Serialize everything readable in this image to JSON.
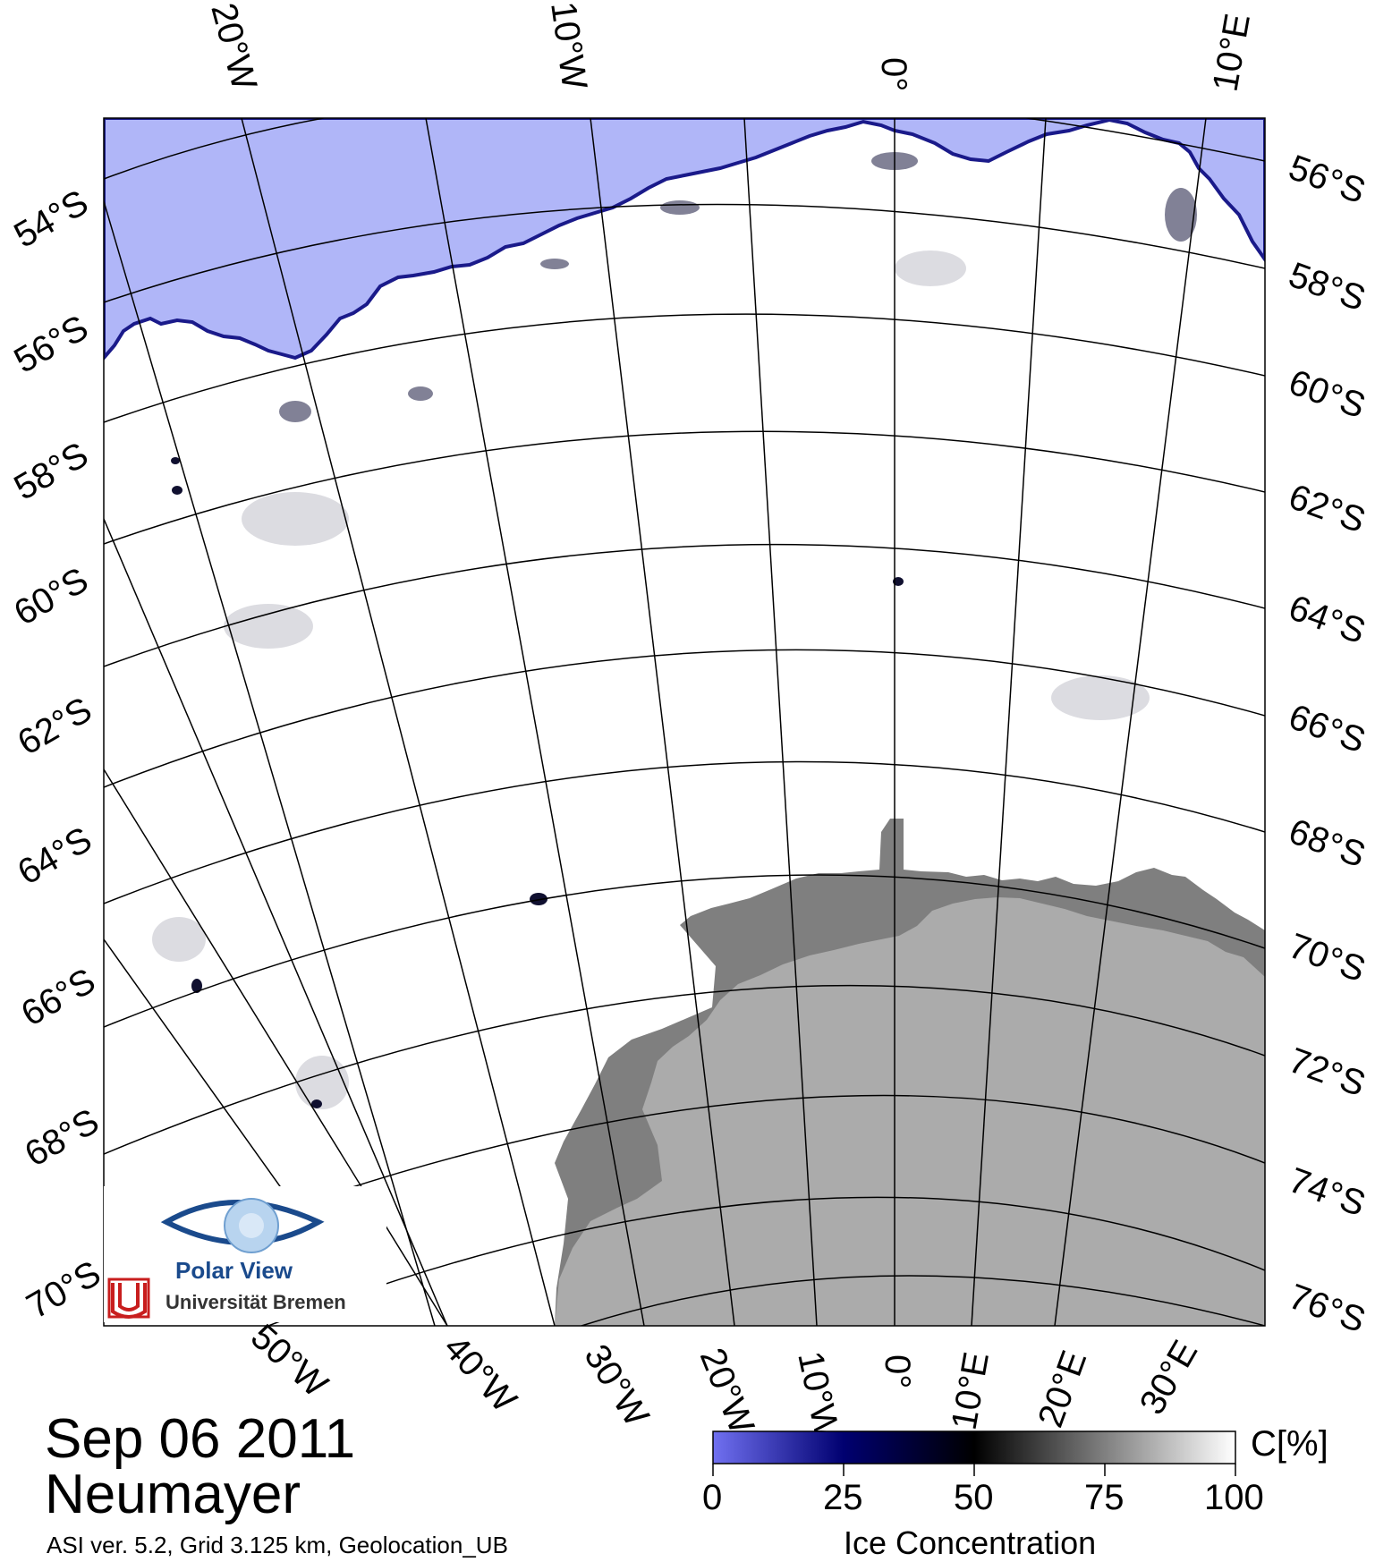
{
  "map": {
    "parallels_top_left": [
      "54°S",
      "56°S",
      "58°S",
      "60°S",
      "62°S",
      "64°S",
      "66°S",
      "68°S",
      "70°S"
    ],
    "parallels_right": [
      "56°S",
      "58°S",
      "60°S",
      "62°S",
      "64°S",
      "66°S",
      "68°S",
      "70°S",
      "72°S",
      "74°S",
      "76°S"
    ],
    "meridians_top": [
      "20°W",
      "10°W",
      "0°",
      "10°E"
    ],
    "meridians_bottom": [
      "50°W",
      "40°W",
      "30°W",
      "20°W",
      "10°W",
      "0°",
      "10°E",
      "20°E",
      "30°E"
    ],
    "colors": {
      "open_water": "#b0b6f8",
      "sea_ice": "#ffffff",
      "ice_shelf": "#7f7f7f",
      "land": "#ababab",
      "graticule": "#000000"
    }
  },
  "footer": {
    "date": "Sep 06 2011",
    "station": "Neumayer",
    "info": "ASI ver. 5.2,  Grid 3.125 km, Geolocation_UB"
  },
  "logo": {
    "title": "Polar View",
    "university": "Universität Bremen"
  },
  "colorbar": {
    "unit": "C[%]",
    "ticks": [
      "0",
      "25",
      "50",
      "75",
      "100"
    ],
    "title": "Ice Concentration",
    "stops": [
      "#7070f0",
      "#000070",
      "#000000",
      "#808080",
      "#ffffff"
    ]
  }
}
